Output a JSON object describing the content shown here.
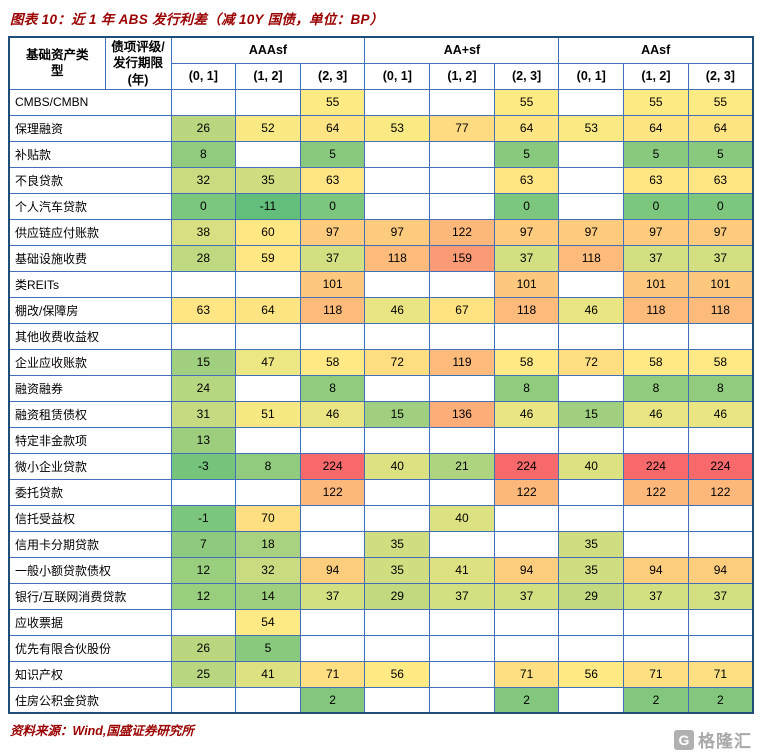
{
  "title": "图表 10：近 1 年 ABS 发行利差（减 10Y 国债，单位：BP）",
  "source": "资料来源：Wind,国盛证券研究所",
  "watermark": {
    "text": "格隆汇",
    "icon_letter": "G"
  },
  "chart_data": {
    "type": "heatmap",
    "title": "近 1 年 ABS 发行利差（减 10Y 国债，单位：BP）",
    "corner_headers": [
      "基础资产类型",
      "债项评级/发行期限(年)"
    ],
    "column_groups": [
      "AAAsf",
      "AA+sf",
      "AAsf"
    ],
    "period_headers": [
      "(0, 1]",
      "(1, 2]",
      "(2, 3]"
    ],
    "rows": [
      {
        "name": "CMBS/CMBN",
        "values": [
          null,
          null,
          55,
          null,
          null,
          55,
          null,
          55,
          55
        ]
      },
      {
        "name": "保理融资",
        "values": [
          26,
          52,
          64,
          53,
          77,
          64,
          53,
          64,
          64
        ]
      },
      {
        "name": "补贴款",
        "values": [
          8,
          null,
          5,
          null,
          null,
          5,
          null,
          5,
          5
        ]
      },
      {
        "name": "不良贷款",
        "values": [
          32,
          35,
          63,
          null,
          null,
          63,
          null,
          63,
          63
        ]
      },
      {
        "name": "个人汽车贷款",
        "values": [
          0,
          -11,
          0,
          null,
          null,
          0,
          null,
          0,
          0
        ]
      },
      {
        "name": "供应链应付账款",
        "values": [
          38,
          60,
          97,
          97,
          122,
          97,
          97,
          97,
          97
        ]
      },
      {
        "name": "基础设施收费",
        "values": [
          28,
          59,
          37,
          118,
          159,
          37,
          118,
          37,
          37
        ]
      },
      {
        "name": "类REITs",
        "values": [
          null,
          null,
          101,
          null,
          null,
          101,
          null,
          101,
          101
        ]
      },
      {
        "name": "棚改/保障房",
        "values": [
          63,
          64,
          118,
          46,
          67,
          118,
          46,
          118,
          118
        ]
      },
      {
        "name": "其他收费收益权",
        "values": [
          null,
          null,
          null,
          null,
          null,
          null,
          null,
          null,
          null
        ]
      },
      {
        "name": "企业应收账款",
        "values": [
          15,
          47,
          58,
          72,
          119,
          58,
          72,
          58,
          58
        ]
      },
      {
        "name": "融资融券",
        "values": [
          24,
          null,
          8,
          null,
          null,
          8,
          null,
          8,
          8
        ]
      },
      {
        "name": "融资租赁债权",
        "values": [
          31,
          51,
          46,
          15,
          136,
          46,
          15,
          46,
          46
        ]
      },
      {
        "name": "特定非金款项",
        "values": [
          13,
          null,
          null,
          null,
          null,
          null,
          null,
          null,
          null
        ]
      },
      {
        "name": "微小企业贷款",
        "values": [
          -3,
          8,
          224,
          40,
          21,
          224,
          40,
          224,
          224
        ]
      },
      {
        "name": "委托贷款",
        "values": [
          null,
          null,
          122,
          null,
          null,
          122,
          null,
          122,
          122
        ]
      },
      {
        "name": "信托受益权",
        "values": [
          -1,
          70,
          null,
          null,
          40,
          null,
          null,
          null,
          null
        ]
      },
      {
        "name": "信用卡分期贷款",
        "values": [
          7,
          18,
          null,
          35,
          null,
          null,
          35,
          null,
          null
        ]
      },
      {
        "name": "一般小额贷款债权",
        "values": [
          12,
          32,
          94,
          35,
          41,
          94,
          35,
          94,
          94
        ]
      },
      {
        "name": "银行/互联网消费贷款",
        "values": [
          12,
          14,
          37,
          29,
          37,
          37,
          29,
          37,
          37
        ]
      },
      {
        "name": "应收票据",
        "values": [
          null,
          54,
          null,
          null,
          null,
          null,
          null,
          null,
          null
        ]
      },
      {
        "name": "优先有限合伙股份",
        "values": [
          26,
          5,
          null,
          null,
          null,
          null,
          null,
          null,
          null
        ]
      },
      {
        "name": "知识产权",
        "values": [
          25,
          41,
          71,
          56,
          null,
          71,
          56,
          71,
          71
        ]
      },
      {
        "name": "住房公积金贷款",
        "values": [
          null,
          null,
          2,
          null,
          null,
          2,
          null,
          2,
          2
        ]
      }
    ],
    "color_scale": {
      "min": -11,
      "mid": 55,
      "max": 224,
      "min_color": "#63BE7B",
      "mid_color": "#FFEB84",
      "max_color": "#F8696B"
    },
    "border_color": "#4270B8",
    "accent_color": "#9A0000"
  }
}
